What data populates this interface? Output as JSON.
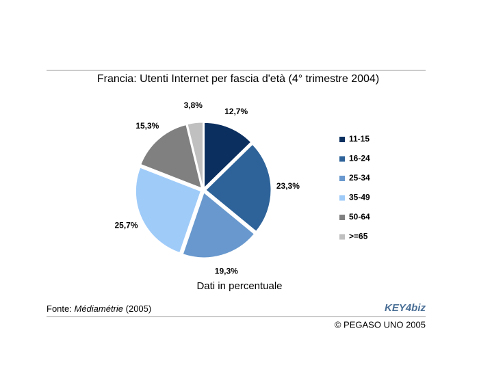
{
  "chart_data": {
    "type": "pie",
    "title": "Francia: Utenti Internet per fascia d'età (4° trimestre 2004)",
    "subtitle": "Dati in percentuale",
    "categories": [
      "11-15",
      "16-24",
      "25-34",
      "35-49",
      "50-64",
      ">=65"
    ],
    "values": [
      12.7,
      23.3,
      19.3,
      25.7,
      15.3,
      3.8
    ],
    "value_labels": [
      "12,7%",
      "23,3%",
      "19,3%",
      "25,7%",
      "15,3%",
      "3,8%"
    ],
    "colors": [
      "#0b2f5f",
      "#2e6399",
      "#6898cd",
      "#9fcbf9",
      "#808080",
      "#c0c0c0"
    ],
    "legend": "right"
  },
  "source_prefix": "Fonte:",
  "source_name": "Médiamétrie",
  "source_year": "(2005)",
  "logo": "KEY4biz",
  "copyright": "© PEGASO UNO 2005"
}
